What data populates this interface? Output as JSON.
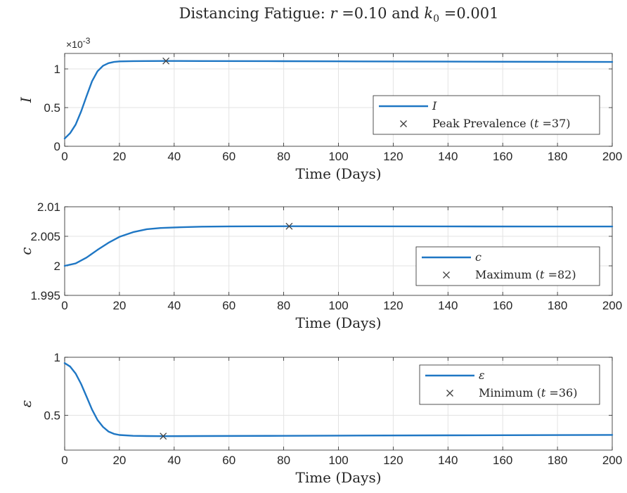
{
  "title": "Distancing Fatigue: r =0.10 and k₀ =0.001",
  "title_parts": {
    "prefix": "Distancing Fatigue: ",
    "var1": "r",
    "mid": " =0.10 and ",
    "var2": "k",
    "sub": "0",
    "suffix": " =0.001"
  },
  "line_color": "#1f77c4",
  "marker_color": "#404040",
  "chart_data": [
    {
      "type": "line",
      "ylabel": "I",
      "xlabel": "Time (Days)",
      "xlim": [
        0,
        200
      ],
      "ylim": [
        0,
        1.2
      ],
      "exponent_label": "×10^-3",
      "exponent_base": "×10",
      "exponent_power": "-3",
      "xticks": [
        0,
        20,
        40,
        60,
        80,
        100,
        120,
        140,
        160,
        180,
        200
      ],
      "yticks": [
        0,
        0.5,
        1
      ],
      "ytick_labels": [
        "0",
        "0.5",
        "1"
      ],
      "grid": true,
      "legend_placement": "lower-right",
      "x": [
        0,
        2,
        4,
        6,
        8,
        10,
        12,
        14,
        16,
        18,
        20,
        25,
        30,
        37,
        50,
        80,
        100,
        150,
        200
      ],
      "y": [
        0.1,
        0.17,
        0.28,
        0.45,
        0.65,
        0.84,
        0.97,
        1.04,
        1.075,
        1.09,
        1.097,
        1.101,
        1.102,
        1.103,
        1.102,
        1.1,
        1.098,
        1.094,
        1.09
      ],
      "marker": {
        "x": 37,
        "y": 1.103
      },
      "legend": {
        "line_label": "I",
        "marker_label": "Peak Prevalence (t =37)",
        "marker_prefix": "Peak Prevalence (",
        "marker_var": "t",
        "marker_suffix": " =37)"
      }
    },
    {
      "type": "line",
      "ylabel": "c",
      "xlabel": "Time (Days)",
      "xlim": [
        0,
        200
      ],
      "ylim": [
        1.995,
        2.01
      ],
      "xticks": [
        0,
        20,
        40,
        60,
        80,
        100,
        120,
        140,
        160,
        180,
        200
      ],
      "yticks": [
        1.995,
        2,
        2.005,
        2.01
      ],
      "ytick_labels": [
        "1.995",
        "2",
        "2.005",
        "2.01"
      ],
      "grid": true,
      "legend_placement": "lower-right",
      "x": [
        0,
        4,
        8,
        12,
        16,
        20,
        25,
        30,
        35,
        40,
        50,
        60,
        70,
        82,
        100,
        150,
        200
      ],
      "y": [
        2.0,
        2.0004,
        2.0014,
        2.0027,
        2.0039,
        2.0049,
        2.0057,
        2.0062,
        2.0064,
        2.0065,
        2.00663,
        2.00668,
        2.00669,
        2.0067,
        2.00669,
        2.00667,
        2.00665
      ],
      "marker": {
        "x": 82,
        "y": 2.0067
      },
      "legend": {
        "line_label": "c",
        "marker_label": "Maximum (t =82)",
        "marker_prefix": "Maximum (",
        "marker_var": "t",
        "marker_suffix": " =82)"
      }
    },
    {
      "type": "line",
      "ylabel": "ε",
      "xlabel": "Time (Days)",
      "xlim": [
        0,
        200
      ],
      "ylim": [
        0.2,
        1
      ],
      "xticks": [
        0,
        20,
        40,
        60,
        80,
        100,
        120,
        140,
        160,
        180,
        200
      ],
      "yticks": [
        0.5,
        1
      ],
      "ytick_labels": [
        "0.5",
        "1"
      ],
      "grid": true,
      "legend_placement": "top-right",
      "x": [
        0,
        2,
        4,
        6,
        8,
        10,
        12,
        14,
        16,
        18,
        20,
        25,
        30,
        36,
        50,
        80,
        100,
        150,
        200
      ],
      "y": [
        0.95,
        0.92,
        0.86,
        0.77,
        0.66,
        0.55,
        0.46,
        0.4,
        0.36,
        0.34,
        0.33,
        0.323,
        0.321,
        0.32,
        0.321,
        0.323,
        0.325,
        0.328,
        0.331
      ],
      "marker": {
        "x": 36,
        "y": 0.32
      },
      "legend": {
        "line_label": "ε",
        "marker_label": "Minimum (t =36)",
        "marker_prefix": "Minimum (",
        "marker_var": "t",
        "marker_suffix": " =36)"
      }
    }
  ]
}
